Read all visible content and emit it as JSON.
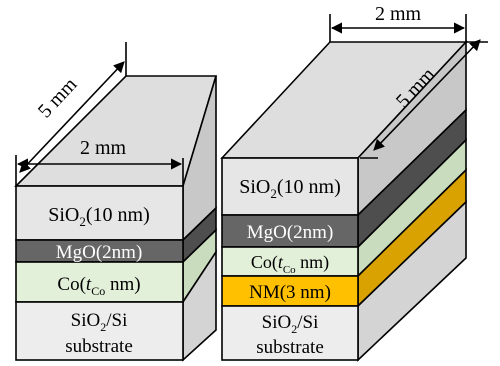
{
  "colors": {
    "sio2": "#e6e6e6",
    "sio2_top": "#dedede",
    "sio2_side": "#c8c8c8",
    "mgo": "#666666",
    "mgo_side": "#4e4e4e",
    "co": "#e3f0d9",
    "co_side": "#c9dcbd",
    "nm": "#ffc000",
    "nm_side": "#d9a200",
    "substrate": "#ededed",
    "substrate_side": "#d4d4d4"
  },
  "left_sample": {
    "dim_length": "5 mm",
    "dim_width": "2 mm",
    "layers": {
      "sio2_cap": "SiO2(10 nm)",
      "mgo": "MgO(2nm)",
      "co": "Co(tCo nm)",
      "substrate_line1": "SiO2/Si",
      "substrate_line2": "substrate"
    }
  },
  "right_sample": {
    "dim_length": "5 mm",
    "dim_width": "2 mm",
    "layers": {
      "sio2_cap": "SiO2(10 nm)",
      "mgo": "MgO(2nm)",
      "co": "Co(tCo nm)",
      "nm": "NM(3 nm)",
      "substrate_line1": "SiO2/Si",
      "substrate_line2": "substrate"
    }
  }
}
